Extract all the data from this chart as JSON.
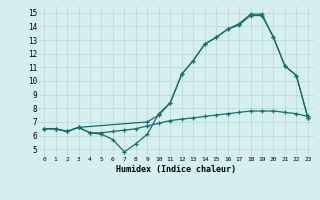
{
  "xlabel": "Humidex (Indice chaleur)",
  "bg_color": "#d5efef",
  "grid_color": "#b8d8d8",
  "line_color": "#1a6b6b",
  "xlim": [
    -0.5,
    23.5
  ],
  "ylim": [
    4.5,
    15.5
  ],
  "xticks": [
    0,
    1,
    2,
    3,
    4,
    5,
    6,
    7,
    8,
    9,
    10,
    11,
    12,
    13,
    14,
    15,
    16,
    17,
    18,
    19,
    20,
    21,
    22,
    23
  ],
  "yticks": [
    5,
    6,
    7,
    8,
    9,
    10,
    11,
    12,
    13,
    14,
    15
  ],
  "s1_x": [
    0,
    1,
    2,
    3,
    4,
    5,
    6,
    7,
    8,
    9,
    10,
    11,
    12,
    13,
    14,
    15,
    16,
    17,
    18,
    19,
    20,
    21,
    22,
    23
  ],
  "s1_y": [
    6.5,
    6.5,
    6.3,
    6.6,
    6.2,
    6.1,
    5.7,
    4.8,
    5.4,
    6.1,
    7.6,
    8.4,
    10.5,
    11.5,
    12.7,
    13.2,
    13.8,
    14.1,
    14.8,
    14.8,
    13.2,
    11.1,
    10.4,
    7.3
  ],
  "s2_x": [
    0,
    1,
    2,
    3,
    4,
    5,
    6,
    7,
    8,
    9,
    10,
    11,
    12,
    13,
    14,
    15,
    16,
    17,
    18,
    19,
    20,
    21,
    22,
    23
  ],
  "s2_y": [
    6.5,
    6.5,
    6.3,
    6.6,
    6.2,
    6.2,
    6.3,
    6.4,
    6.5,
    6.7,
    6.9,
    7.1,
    7.2,
    7.3,
    7.4,
    7.5,
    7.6,
    7.7,
    7.8,
    7.8,
    7.8,
    7.7,
    7.6,
    7.4
  ],
  "s3_x": [
    0,
    1,
    2,
    3,
    9,
    10,
    11,
    12,
    13,
    14,
    15,
    16,
    17,
    18,
    19,
    20,
    21,
    22,
    23
  ],
  "s3_y": [
    6.5,
    6.5,
    6.3,
    6.6,
    7.0,
    7.5,
    8.4,
    10.5,
    11.5,
    12.7,
    13.2,
    13.8,
    14.2,
    14.9,
    14.9,
    13.2,
    11.1,
    10.4,
    7.3
  ]
}
